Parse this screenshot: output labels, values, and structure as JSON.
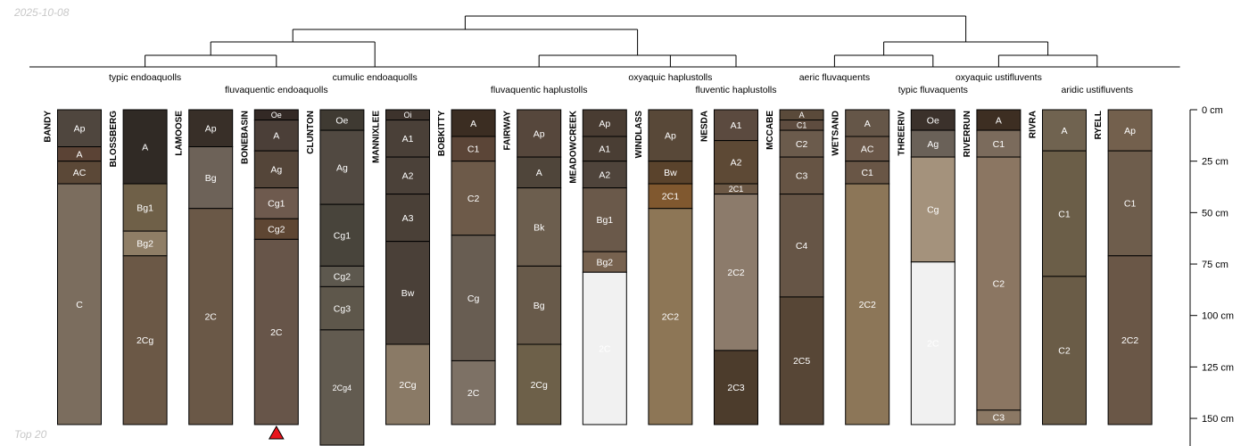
{
  "header": {
    "date": "2025-10-08"
  },
  "footer": {
    "label": "Top 20"
  },
  "depth_axis": {
    "unit": "cm",
    "max_depth": 155,
    "ticks": [
      0,
      25,
      50,
      75,
      100,
      125,
      150
    ]
  },
  "marker": {
    "profile": "BONEBASIN",
    "color": "#e8141c",
    "meaning": "flagged profile"
  },
  "taxa": [
    {
      "label": "typic endoaquolls",
      "members": [
        "BANDY",
        "BLOSSBERG",
        "LAMOOSE"
      ],
      "level": 1
    },
    {
      "label": "fluvaquentic endoaquolls",
      "members": [
        "BONEBASIN"
      ],
      "level": 2
    },
    {
      "label": "cumulic endoaquolls",
      "members": [
        "CLUNTON",
        "MANNIXLEE"
      ],
      "level": 1
    },
    {
      "label": "fluvaquentic haplustolls",
      "members": [
        "BOBKITTY",
        "FAIRWAY",
        "MEADOWCREEK"
      ],
      "level": 2
    },
    {
      "label": "oxyaquic haplustolls",
      "members": [
        "WINDLASS"
      ],
      "level": 1
    },
    {
      "label": "fluventic haplustolls",
      "members": [
        "NESDA"
      ],
      "level": 2
    },
    {
      "label": "aeric fluvaquents",
      "members": [
        "MCCABE",
        "WETSAND"
      ],
      "level": 1
    },
    {
      "label": "typic fluvaquents",
      "members": [
        "THREERIV"
      ],
      "level": 2
    },
    {
      "label": "oxyaquic ustifluvents",
      "members": [
        "RIVERRUN"
      ],
      "level": 1
    },
    {
      "label": "aridic ustifluvents",
      "members": [
        "RIVRA",
        "RYELL"
      ],
      "level": 2
    }
  ],
  "profiles": [
    {
      "name": "BANDY",
      "horizons": [
        {
          "name": "Ap",
          "top": 0,
          "bottom": 18,
          "color": "#4f463e"
        },
        {
          "name": "A",
          "top": 18,
          "bottom": 25,
          "color": "#5b4335"
        },
        {
          "name": "AC",
          "top": 25,
          "bottom": 36,
          "color": "#5b4837"
        },
        {
          "name": "C",
          "top": 36,
          "bottom": 153,
          "color": "#7b6d5e"
        }
      ]
    },
    {
      "name": "BLOSSBERG",
      "horizons": [
        {
          "name": "A",
          "top": 0,
          "bottom": 36,
          "color": "#302a25"
        },
        {
          "name": "Bg1",
          "top": 36,
          "bottom": 59,
          "color": "#6f6048"
        },
        {
          "name": "Bg2",
          "top": 59,
          "bottom": 71,
          "color": "#8f7e66"
        },
        {
          "name": "2Cg",
          "top": 71,
          "bottom": 153,
          "color": "#6b5846"
        }
      ]
    },
    {
      "name": "LAMOOSE",
      "horizons": [
        {
          "name": "Ap",
          "top": 0,
          "bottom": 18,
          "color": "#382f28"
        },
        {
          "name": "Bg",
          "top": 18,
          "bottom": 48,
          "color": "#6d6258"
        },
        {
          "name": "2C",
          "top": 48,
          "bottom": 153,
          "color": "#6a5847"
        }
      ]
    },
    {
      "name": "BONEBASIN",
      "horizons": [
        {
          "name": "Oe",
          "top": 0,
          "bottom": 5,
          "color": "#332925"
        },
        {
          "name": "A",
          "top": 5,
          "bottom": 20,
          "color": "#4b3f38"
        },
        {
          "name": "Ag",
          "top": 20,
          "bottom": 38,
          "color": "#544539"
        },
        {
          "name": "Cg1",
          "top": 38,
          "bottom": 53,
          "color": "#6e5a4e"
        },
        {
          "name": "Cg2",
          "top": 53,
          "bottom": 63,
          "color": "#5e4633"
        },
        {
          "name": "2C",
          "top": 63,
          "bottom": 153,
          "color": "#675549"
        }
      ]
    },
    {
      "name": "CLUNTON",
      "horizons": [
        {
          "name": "Oe",
          "top": 0,
          "bottom": 10,
          "color": "#3f3a32"
        },
        {
          "name": "Ag",
          "top": 10,
          "bottom": 46,
          "color": "#514941"
        },
        {
          "name": "Cg1",
          "top": 46,
          "bottom": 76,
          "color": "#48443b"
        },
        {
          "name": "Cg2",
          "top": 76,
          "bottom": 86,
          "color": "#5d584e"
        },
        {
          "name": "Cg3",
          "top": 86,
          "bottom": 107,
          "color": "#5e574b"
        },
        {
          "name": "2Cg4",
          "top": 107,
          "bottom": 163,
          "color": "#625b50"
        }
      ]
    },
    {
      "name": "MANNIXLEE",
      "horizons": [
        {
          "name": "Oi",
          "top": 0,
          "bottom": 5,
          "color": "#3d332c"
        },
        {
          "name": "A1",
          "top": 5,
          "bottom": 23,
          "color": "#4a4038"
        },
        {
          "name": "A2",
          "top": 23,
          "bottom": 41,
          "color": "#4b4139"
        },
        {
          "name": "A3",
          "top": 41,
          "bottom": 64,
          "color": "#4a4037"
        },
        {
          "name": "Bw",
          "top": 64,
          "bottom": 114,
          "color": "#4a4038"
        },
        {
          "name": "2Cg",
          "top": 114,
          "bottom": 153,
          "color": "#8a7a66"
        }
      ]
    },
    {
      "name": "BOBKITTY",
      "horizons": [
        {
          "name": "A",
          "top": 0,
          "bottom": 13,
          "color": "#3b2d22"
        },
        {
          "name": "C1",
          "top": 13,
          "bottom": 25,
          "color": "#5b4537"
        },
        {
          "name": "C2",
          "top": 25,
          "bottom": 61,
          "color": "#6d5a49"
        },
        {
          "name": "Cg",
          "top": 61,
          "bottom": 122,
          "color": "#685d52"
        },
        {
          "name": "2C",
          "top": 122,
          "bottom": 153,
          "color": "#7d7165"
        }
      ]
    },
    {
      "name": "FAIRWAY",
      "horizons": [
        {
          "name": "Ap",
          "top": 0,
          "bottom": 23,
          "color": "#56473c"
        },
        {
          "name": "A",
          "top": 23,
          "bottom": 38,
          "color": "#4f453a"
        },
        {
          "name": "Bk",
          "top": 38,
          "bottom": 76,
          "color": "#6c5e4e"
        },
        {
          "name": "Bg",
          "top": 76,
          "bottom": 114,
          "color": "#685a4a"
        },
        {
          "name": "2Cg",
          "top": 114,
          "bottom": 153,
          "color": "#6d6049"
        }
      ]
    },
    {
      "name": "MEADOWCREEK",
      "horizons": [
        {
          "name": "Ap",
          "top": 0,
          "bottom": 13,
          "color": "#493c32"
        },
        {
          "name": "A1",
          "top": 13,
          "bottom": 25,
          "color": "#4a3e34"
        },
        {
          "name": "A2",
          "top": 25,
          "bottom": 38,
          "color": "#4f443b"
        },
        {
          "name": "Bg1",
          "top": 38,
          "bottom": 69,
          "color": "#6a594a"
        },
        {
          "name": "Bg2",
          "top": 69,
          "bottom": 79,
          "color": "#77624f"
        },
        {
          "name": "2C",
          "top": 79,
          "bottom": 153,
          "color": "#f1f1f1"
        }
      ]
    },
    {
      "name": "WINDLASS",
      "horizons": [
        {
          "name": "Ap",
          "top": 0,
          "bottom": 25,
          "color": "#584838"
        },
        {
          "name": "Bw",
          "top": 25,
          "bottom": 36,
          "color": "#5a432c"
        },
        {
          "name": "2C1",
          "top": 36,
          "bottom": 48,
          "color": "#80582f"
        },
        {
          "name": "2C2",
          "top": 48,
          "bottom": 153,
          "color": "#8d7656"
        }
      ]
    },
    {
      "name": "NESDA",
      "horizons": [
        {
          "name": "A1",
          "top": 0,
          "bottom": 15,
          "color": "#5b4a3f"
        },
        {
          "name": "A2",
          "top": 15,
          "bottom": 36,
          "color": "#5d4935"
        },
        {
          "name": "2C1",
          "top": 36,
          "bottom": 41,
          "color": "#6c5845"
        },
        {
          "name": "2C2",
          "top": 41,
          "bottom": 117,
          "color": "#8c7b6b"
        },
        {
          "name": "2C3",
          "top": 117,
          "bottom": 153,
          "color": "#4c3c2c"
        }
      ]
    },
    {
      "name": "MCCABE",
      "horizons": [
        {
          "name": "A",
          "top": 0,
          "bottom": 5,
          "color": "#5a4a3a"
        },
        {
          "name": "C1",
          "top": 5,
          "bottom": 10,
          "color": "#5e4c3f"
        },
        {
          "name": "C2",
          "top": 10,
          "bottom": 23,
          "color": "#6b5b4c"
        },
        {
          "name": "C3",
          "top": 23,
          "bottom": 41,
          "color": "#665444"
        },
        {
          "name": "C4",
          "top": 41,
          "bottom": 91,
          "color": "#665546"
        },
        {
          "name": "2C5",
          "top": 91,
          "bottom": 153,
          "color": "#574636"
        }
      ]
    },
    {
      "name": "WETSAND",
      "horizons": [
        {
          "name": "A",
          "top": 0,
          "bottom": 13,
          "color": "#655648"
        },
        {
          "name": "AC",
          "top": 13,
          "bottom": 25,
          "color": "#6a5748"
        },
        {
          "name": "C1",
          "top": 25,
          "bottom": 36,
          "color": "#695646"
        },
        {
          "name": "2C2",
          "top": 36,
          "bottom": 153,
          "color": "#8c7658"
        }
      ]
    },
    {
      "name": "THREERIV",
      "horizons": [
        {
          "name": "Oe",
          "top": 0,
          "bottom": 10,
          "color": "#3b312b"
        },
        {
          "name": "Ag",
          "top": 10,
          "bottom": 23,
          "color": "#6a6158"
        },
        {
          "name": "Cg",
          "top": 23,
          "bottom": 74,
          "color": "#a4927c"
        },
        {
          "name": "2C",
          "top": 74,
          "bottom": 153,
          "color": "#f1f1f1"
        }
      ]
    },
    {
      "name": "RIVERRUN",
      "horizons": [
        {
          "name": "A",
          "top": 0,
          "bottom": 10,
          "color": "#3d2e22"
        },
        {
          "name": "C1",
          "top": 10,
          "bottom": 23,
          "color": "#7b6b5c"
        },
        {
          "name": "C2",
          "top": 23,
          "bottom": 146,
          "color": "#8b7662"
        },
        {
          "name": "C3",
          "top": 146,
          "bottom": 153,
          "color": "#8b7864"
        }
      ]
    },
    {
      "name": "RIVRA",
      "horizons": [
        {
          "name": "A",
          "top": 0,
          "bottom": 20,
          "color": "#706350"
        },
        {
          "name": "C1",
          "top": 20,
          "bottom": 81,
          "color": "#6b5e48"
        },
        {
          "name": "C2",
          "top": 81,
          "bottom": 153,
          "color": "#6a5c47"
        }
      ]
    },
    {
      "name": "RYELL",
      "horizons": [
        {
          "name": "Ap",
          "top": 0,
          "bottom": 20,
          "color": "#73604d"
        },
        {
          "name": "C1",
          "top": 20,
          "bottom": 71,
          "color": "#6e5d4c"
        },
        {
          "name": "2C2",
          "top": 71,
          "bottom": 153,
          "color": "#6a5747"
        }
      ]
    }
  ]
}
